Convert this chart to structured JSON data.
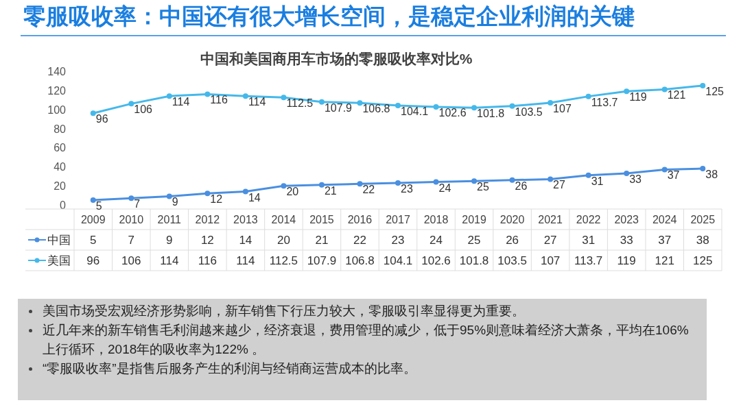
{
  "chart_data": {
    "type": "line",
    "title": "零服吸收率：中国还有很大增长空间，是稳定企业利润的关键",
    "subtitle": "中国和美国商用车市场的零服吸收率对比%",
    "categories": [
      "2009",
      "2010",
      "2011",
      "2012",
      "2013",
      "2014",
      "2015",
      "2016",
      "2017",
      "2018",
      "2019",
      "2020",
      "2021",
      "2022",
      "2023",
      "2024",
      "2025"
    ],
    "series": [
      {
        "name": "中国",
        "color": "#4a8fe0",
        "values": [
          5,
          7,
          9,
          12,
          14,
          20,
          21,
          22,
          23,
          24,
          25,
          26,
          27,
          31,
          33,
          37,
          38
        ]
      },
      {
        "name": "美国",
        "color": "#45b8ea",
        "values": [
          96,
          106,
          114,
          116,
          114,
          112.5,
          107.9,
          106.8,
          104.1,
          102.6,
          101.8,
          103.5,
          107,
          113.7,
          119,
          121,
          125
        ]
      }
    ],
    "ylim": [
      0,
      140
    ],
    "yticks": [
      0,
      20,
      40,
      60,
      80,
      100,
      120,
      140
    ],
    "grid": false,
    "legend": "bottom",
    "marker": "circle",
    "line_style": "solid",
    "data_labels": true,
    "annotations": [
      {
        "text": "5",
        "x": "2009",
        "y": 5
      },
      {
        "text": "7",
        "x": "2010",
        "y": 7
      },
      {
        "text": "9",
        "x": "2011",
        "y": 9
      },
      {
        "text": "12",
        "x": "2012",
        "y": 12
      },
      {
        "text": "14",
        "x": "2013",
        "y": 14
      },
      {
        "text": "20",
        "x": "2014",
        "y": 20
      },
      {
        "text": "21",
        "x": "2015",
        "y": 21
      },
      {
        "text": "22",
        "x": "2016",
        "y": 22
      },
      {
        "text": "23",
        "x": "2017",
        "y": 23
      },
      {
        "text": "24",
        "x": "2018",
        "y": 24
      },
      {
        "text": "25",
        "x": "2019",
        "y": 25
      },
      {
        "text": "26",
        "x": "2020",
        "y": 26
      },
      {
        "text": "27",
        "x": "2021",
        "y": 27
      },
      {
        "text": "31",
        "x": "2022",
        "y": 31
      },
      {
        "text": "33",
        "x": "2023",
        "y": 33
      },
      {
        "text": "37",
        "x": "2024",
        "y": 37
      },
      {
        "text": "38",
        "x": "2025",
        "y": 38
      },
      {
        "text": "96",
        "x": "2009",
        "y": 96
      },
      {
        "text": "106",
        "x": "2010",
        "y": 106
      },
      {
        "text": "114",
        "x": "2011",
        "y": 114
      },
      {
        "text": "116",
        "x": "2012",
        "y": 116
      },
      {
        "text": "114",
        "x": "2013",
        "y": 114
      },
      {
        "text": "112.5",
        "x": "2014",
        "y": 112.5
      },
      {
        "text": "107.9",
        "x": "2015",
        "y": 107.9
      },
      {
        "text": "106.8",
        "x": "2016",
        "y": 106.8
      },
      {
        "text": "104.1",
        "x": "2017",
        "y": 104.1
      },
      {
        "text": "102.6",
        "x": "2018",
        "y": 102.6
      },
      {
        "text": "101.8",
        "x": "2019",
        "y": 101.8
      },
      {
        "text": "103.5",
        "x": "2020",
        "y": 103.5
      },
      {
        "text": "107",
        "x": "2021",
        "y": 107
      },
      {
        "text": "113.7",
        "x": "2022",
        "y": 113.7
      },
      {
        "text": "119",
        "x": "2023",
        "y": 119
      },
      {
        "text": "121",
        "x": "2024",
        "y": 121
      },
      {
        "text": "125",
        "x": "2025",
        "y": 125
      },
      "美国市场受宏观经济形势影响，新车销售下行压力较大，零服吸引率显得更为重要。",
      "近几年来的新车销售毛利润越来越少，经济衰退，费用管理的减少，低于95%则意味着经济大萧条，平均在106%上行循环，2018年的吸收率为122% 。",
      "“零服吸收率”是指售后服务产生的利润与经销商运营成本的比率。"
    ]
  }
}
